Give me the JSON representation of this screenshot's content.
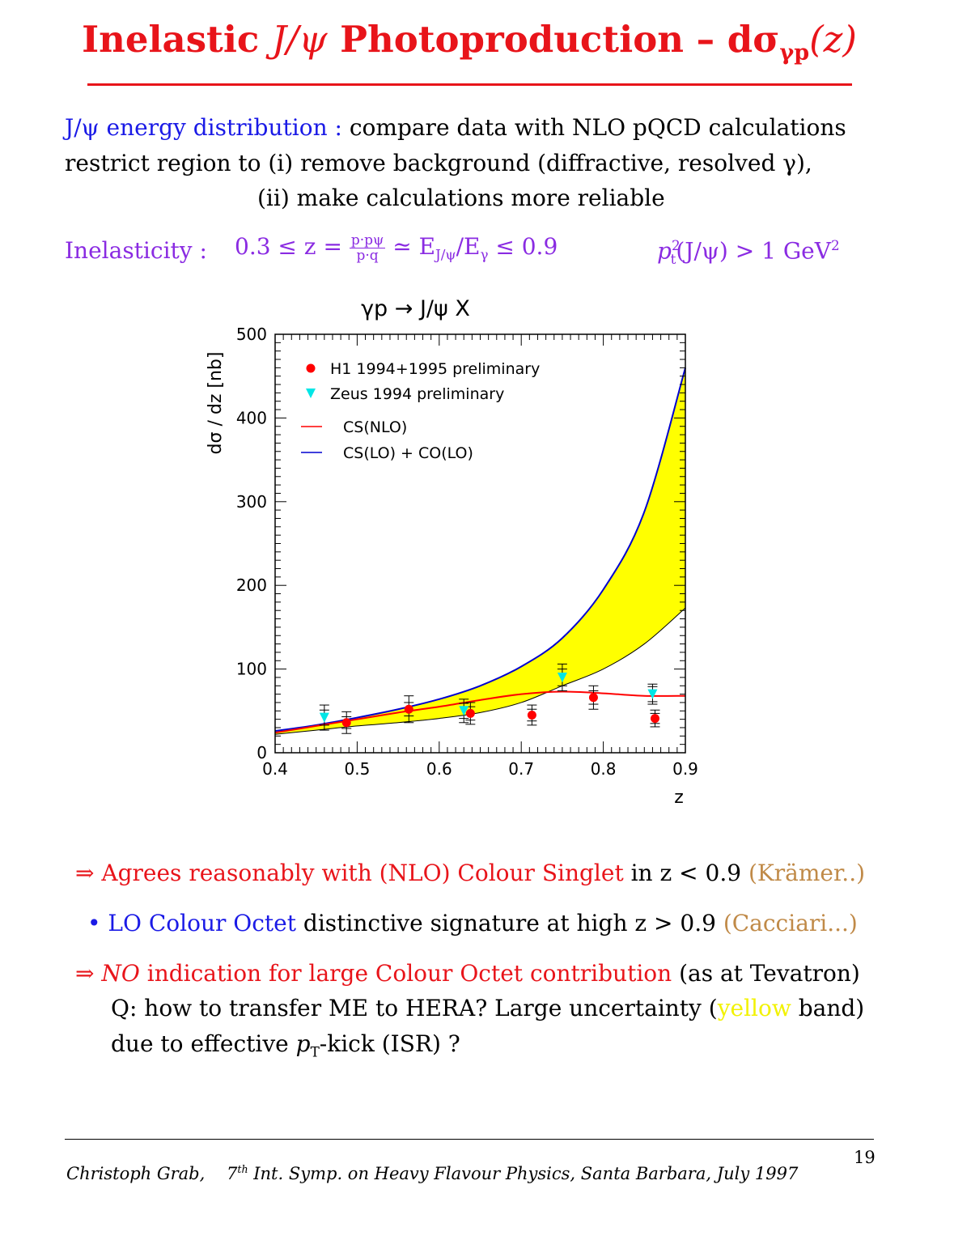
{
  "title": {
    "lead": "Inelastic ",
    "psi": "J/ψ",
    "mid": " Photoproduction – dσ",
    "sub": "γp",
    "tail": "(z)"
  },
  "intro": {
    "l1_blue": "J/ψ energy distribution :",
    "l1_rest": " compare data with NLO pQCD calculations",
    "l2": "restrict region to (i) remove background (diffractive, resolved γ),",
    "l3": "(ii) make calculations more reliable"
  },
  "inelasticity": {
    "label": "Inelasticity :",
    "lhs": "0.3 ≤ z =",
    "frac_num": "p·pψ",
    "frac_den": "p·q",
    "rhs": "≃ E",
    "rhs_sub": "J/ψ",
    "rhs2": "/E",
    "rhs2_sub": "γ",
    "rhs3": " ≤ 0.9",
    "pt": "p",
    "pt_sup": "2",
    "pt_sub": "t",
    "pt_rest": "(J/ψ) > 1 GeV",
    "pt_rest_sup": "2"
  },
  "chart_data": {
    "type": "line",
    "title": "γp → J/ψ X",
    "xlabel": "z",
    "ylabel": "dσ / dz [nb]",
    "xlim": [
      0.4,
      0.9
    ],
    "ylim": [
      0,
      500
    ],
    "xticks": [
      "0.4",
      "0.5",
      "0.6",
      "0.7",
      "0.8",
      "0.9"
    ],
    "yticks": [
      "0",
      "100",
      "200",
      "300",
      "400",
      "500"
    ],
    "legend_position": "top-left",
    "series": [
      {
        "name": "H1 1994+1995 preliminary",
        "kind": "points",
        "marker": "circle",
        "color": "#ff0000",
        "x": [
          0.487,
          0.563,
          0.638,
          0.713,
          0.788,
          0.863
        ],
        "y": [
          36,
          52,
          47,
          45,
          66,
          41
        ],
        "err_stat": [
          7,
          8,
          8,
          7,
          8,
          6
        ],
        "err_tot": [
          13,
          16,
          13,
          12,
          14,
          10
        ]
      },
      {
        "name": "Zeus 1994 preliminary",
        "kind": "points",
        "marker": "triangle-down",
        "color": "#00e6e6",
        "x": [
          0.46,
          0.63,
          0.75,
          0.86
        ],
        "y": [
          42,
          50,
          90,
          70
        ],
        "err_stat": [
          9,
          9,
          10,
          9
        ],
        "err_tot": [
          15,
          14,
          16,
          12
        ]
      },
      {
        "name": "CS(NLO)",
        "kind": "line",
        "color": "#ff0000",
        "x": [
          0.4,
          0.45,
          0.5,
          0.55,
          0.6,
          0.65,
          0.7,
          0.75,
          0.8,
          0.85,
          0.9
        ],
        "y": [
          24,
          32,
          40,
          48,
          55,
          63,
          70,
          73,
          71,
          68,
          68
        ]
      },
      {
        "name": "CS(LO) + CO(LO)",
        "kind": "line",
        "color": "#0000d0",
        "x": [
          0.4,
          0.45,
          0.5,
          0.55,
          0.6,
          0.65,
          0.7,
          0.75,
          0.8,
          0.85,
          0.9
        ],
        "y": [
          26,
          33,
          42,
          52,
          64,
          80,
          103,
          137,
          195,
          288,
          460
        ]
      },
      {
        "name": "",
        "kind": "band-lower",
        "color": "#000000",
        "x": [
          0.4,
          0.45,
          0.5,
          0.55,
          0.6,
          0.65,
          0.7,
          0.75,
          0.8,
          0.85,
          0.9
        ],
        "y": [
          22,
          27,
          32,
          36,
          41,
          48,
          60,
          80,
          100,
          130,
          173
        ]
      }
    ],
    "band_color": "#ffff00"
  },
  "bullets": {
    "b1_arrow": "⇒",
    "b1_red": "Agrees reasonably with (NLO) Colour Singlet",
    "b1_mid": "  in z < 0.9 ",
    "b1_brown": "(Krämer..)",
    "b2_dot": "•",
    "b2_blue": "LO Colour Octet",
    "b2_mid": " distinctive signature at high z > 0.9 ",
    "b2_brown": "(Cacciari...)",
    "b3_arrow": "⇒",
    "b3_red_i": "NO",
    "b3_red": " indication for large Colour Octet contribution",
    "b3_rest": " (as at Tevatron)",
    "b3_l2a": "Q: how to transfer ME to HERA? Large uncertainty (",
    "b3_l2y": "yellow",
    "b3_l2b": "  band)",
    "b3_l3a": "due to effective ",
    "b3_l3p": "p",
    "b3_l3sub": "T",
    "b3_l3b": "-kick (ISR) ?"
  },
  "footer": {
    "author": "Christoph Grab,",
    "ord": "7",
    "ord_sup": "th",
    "rest": " Int. Symp. on Heavy Flavour Physics, Santa Barbara, July 1997",
    "page": "19"
  }
}
